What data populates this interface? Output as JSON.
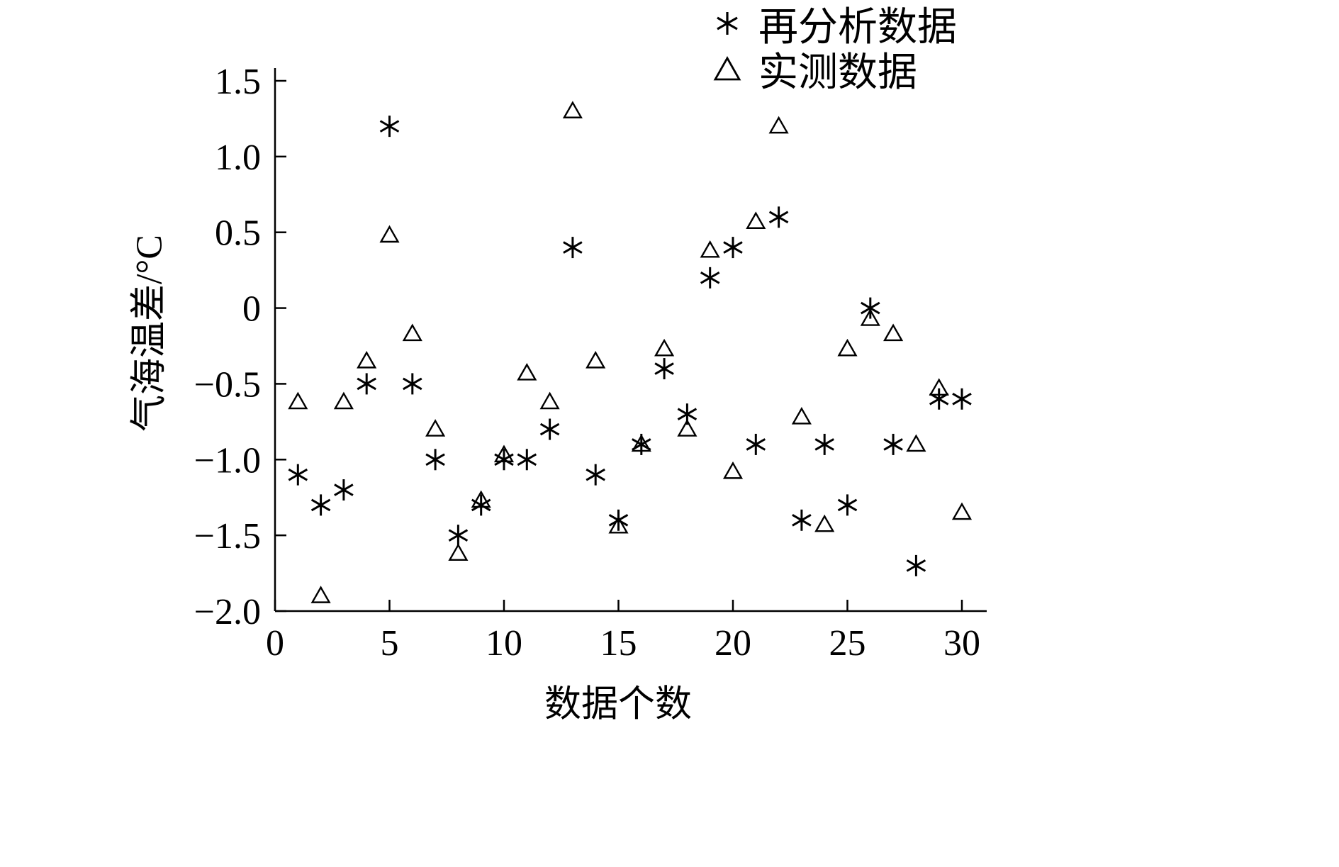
{
  "chart_data": {
    "type": "scatter",
    "title": "",
    "xlabel": "数据个数",
    "ylabel": "气海温差/°C",
    "xlim": [
      0,
      30
    ],
    "ylim": [
      -2.0,
      1.5
    ],
    "grid": false,
    "legend_position": "top-right-outside",
    "x_ticks": [
      {
        "v": 0,
        "label": "0"
      },
      {
        "v": 5,
        "label": "5"
      },
      {
        "v": 10,
        "label": "10"
      },
      {
        "v": 15,
        "label": "15"
      },
      {
        "v": 20,
        "label": "20"
      },
      {
        "v": 25,
        "label": "25"
      },
      {
        "v": 30,
        "label": "30"
      }
    ],
    "y_ticks": [
      {
        "v": 1.5,
        "label": "1.5"
      },
      {
        "v": 1.0,
        "label": "1.0"
      },
      {
        "v": 0.5,
        "label": "0.5"
      },
      {
        "v": 0,
        "label": "0"
      },
      {
        "v": -0.5,
        "label": "−0.5"
      },
      {
        "v": -1.0,
        "label": "−1.0"
      },
      {
        "v": -1.5,
        "label": "−1.5"
      },
      {
        "v": -2.0,
        "label": "−2.0"
      }
    ],
    "series": [
      {
        "name": "再分析数据",
        "marker": "asterisk",
        "color": "#000000",
        "x": [
          1,
          2,
          3,
          4,
          5,
          6,
          7,
          8,
          9,
          10,
          11,
          12,
          13,
          14,
          15,
          16,
          17,
          18,
          19,
          20,
          21,
          22,
          23,
          24,
          25,
          26,
          27,
          28,
          29,
          30
        ],
        "y": [
          -1.1,
          -1.3,
          -1.2,
          -0.5,
          1.2,
          -0.5,
          -1.0,
          -1.5,
          -1.3,
          -1.0,
          -1.0,
          -0.8,
          0.4,
          -1.1,
          -1.4,
          -0.9,
          -0.4,
          -0.7,
          0.2,
          0.4,
          -0.9,
          0.6,
          -1.4,
          -0.9,
          -1.3,
          0.0,
          -0.9,
          -1.7,
          -0.6,
          -0.6
        ]
      },
      {
        "name": "实测数据",
        "marker": "triangle",
        "color": "#000000",
        "x": [
          1,
          2,
          3,
          4,
          5,
          6,
          7,
          8,
          9,
          10,
          11,
          12,
          13,
          14,
          15,
          16,
          17,
          18,
          19,
          20,
          21,
          22,
          23,
          24,
          25,
          26,
          27,
          28,
          29,
          30
        ],
        "y": [
          -0.62,
          -1.9,
          -0.62,
          -0.35,
          0.48,
          -0.17,
          -0.8,
          -1.62,
          -1.27,
          -0.97,
          -0.43,
          -0.62,
          1.3,
          -0.35,
          -1.44,
          -0.9,
          -0.27,
          -0.8,
          0.38,
          -1.08,
          0.57,
          1.2,
          -0.72,
          -1.43,
          -0.27,
          -0.07,
          -0.17,
          -0.9,
          -0.53,
          -1.35
        ]
      }
    ]
  }
}
